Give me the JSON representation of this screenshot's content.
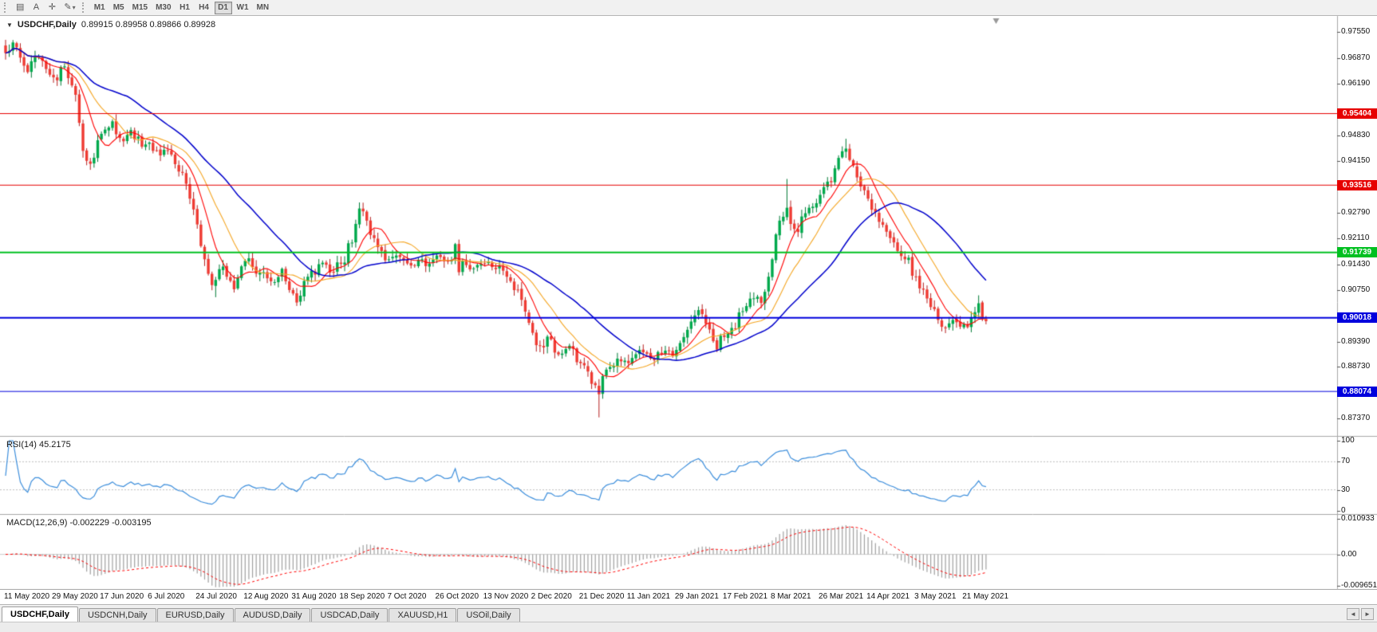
{
  "toolbar": {
    "icons": {
      "charts": "▤",
      "text_label": "A",
      "crosshair": "✛",
      "draw": "✎",
      "dropdown": "▾"
    },
    "timeframes": [
      "M1",
      "M5",
      "M15",
      "M30",
      "H1",
      "H4",
      "D1",
      "W1",
      "MN"
    ],
    "active_timeframe": "D1"
  },
  "chart": {
    "title_symbol": "USDCHF,Daily",
    "title_ohlc": "0.89915 0.89958 0.89866 0.89928",
    "expand_icon": "▼"
  },
  "rsi_panel": {
    "label": "RSI(14) 45.2175"
  },
  "macd_panel": {
    "label": "MACD(12,26,9) -0.002229 -0.003195"
  },
  "window_tabs": [
    "USDCHF,Daily",
    "USDCNH,Daily",
    "EURUSD,Daily",
    "AUDUSD,Daily",
    "USDCAD,Daily",
    "XAUUSD,H1",
    "USOil,Daily"
  ],
  "active_tab_index": 0,
  "tab_arrows": {
    "left": "◄",
    "right": "►"
  },
  "chart_data": {
    "type": "candlestick",
    "symbol": "USDCHF",
    "period": "Daily",
    "open": "0.89915",
    "high": "0.89958",
    "low": "0.89866",
    "close": "0.89928",
    "ylim": [
      0.869,
      0.9798
    ],
    "y_ticks": [
      0.9755,
      0.9687,
      0.9619,
      0.9483,
      0.9415,
      0.9279,
      0.9211,
      0.9143,
      0.9075,
      0.8939,
      0.8873,
      0.8737
    ],
    "y_tick_labels": [
      "0.97550",
      "0.96870",
      "0.96190",
      "0.94830",
      "0.94150",
      "0.92790",
      "0.92110",
      "0.91430",
      "0.90750",
      "0.89390",
      "0.88730",
      "0.87370"
    ],
    "hlines": [
      {
        "price": 0.95404,
        "label": "0.95404",
        "color": "#e60000",
        "width": 1
      },
      {
        "price": 0.93516,
        "label": "0.93516",
        "color": "#e60000",
        "width": 1
      },
      {
        "price": 0.91739,
        "label": "0.91739",
        "color": "#00c020",
        "width": 2
      },
      {
        "price": 0.90018,
        "label": "0.90018",
        "color": "#0000dd",
        "width": 2
      },
      {
        "price": 0.88074,
        "label": "0.88074",
        "color": "#0000dd",
        "width": 1
      }
    ],
    "x_labels": [
      "11 May 2020",
      "29 May 2020",
      "17 Jun 2020",
      "6 Jul 2020",
      "24 Jul 2020",
      "12 Aug 2020",
      "31 Aug 2020",
      "18 Sep 2020",
      "7 Oct 2020",
      "26 Oct 2020",
      "13 Nov 2020",
      "2 Dec 2020",
      "21 Dec 2020",
      "11 Jan 2021",
      "29 Jan 2021",
      "17 Feb 2021",
      "8 Mar 2021",
      "26 Mar 2021",
      "14 Apr 2021",
      "3 May 2021",
      "21 May 2021"
    ],
    "bars_per_label": 13,
    "total_bars": 267,
    "candle_colors": {
      "up": "#00a94c",
      "down": "#ef3b33",
      "up_border": "#007a36",
      "down_border": "#b51f1f"
    },
    "moving_averages": [
      {
        "period": 8,
        "color": "#ff0000"
      },
      {
        "period": 16,
        "color": "#f5a623"
      },
      {
        "period": 34,
        "color": "#0000cc"
      }
    ],
    "price_anchors": [
      [
        0,
        0.97
      ],
      [
        2,
        0.9728
      ],
      [
        4,
        0.9688
      ],
      [
        6,
        0.965
      ],
      [
        8,
        0.9692
      ],
      [
        11,
        0.9658
      ],
      [
        13,
        0.9636
      ],
      [
        16,
        0.9665
      ],
      [
        19,
        0.959
      ],
      [
        21,
        0.9442
      ],
      [
        23,
        0.9408
      ],
      [
        25,
        0.947
      ],
      [
        26,
        0.9487
      ],
      [
        29,
        0.952
      ],
      [
        31,
        0.9476
      ],
      [
        34,
        0.9497
      ],
      [
        37,
        0.9453
      ],
      [
        39,
        0.9464
      ],
      [
        42,
        0.943
      ],
      [
        44,
        0.9442
      ],
      [
        46,
        0.9407
      ],
      [
        48,
        0.9384
      ],
      [
        50,
        0.9316
      ],
      [
        52,
        0.9248
      ],
      [
        54,
        0.9156
      ],
      [
        56,
        0.9088
      ],
      [
        58,
        0.913
      ],
      [
        60,
        0.911
      ],
      [
        62,
        0.9077
      ],
      [
        65,
        0.9152
      ],
      [
        69,
        0.9121
      ],
      [
        72,
        0.9098
      ],
      [
        75,
        0.9131
      ],
      [
        77,
        0.9075
      ],
      [
        79,
        0.9042
      ],
      [
        82,
        0.911
      ],
      [
        85,
        0.9143
      ],
      [
        88,
        0.9121
      ],
      [
        91,
        0.9144
      ],
      [
        94,
        0.92
      ],
      [
        96,
        0.929
      ],
      [
        98,
        0.9258
      ],
      [
        100,
        0.9212
      ],
      [
        102,
        0.9178
      ],
      [
        104,
        0.9156
      ],
      [
        106,
        0.9166
      ],
      [
        109,
        0.9145
      ],
      [
        112,
        0.9155
      ],
      [
        114,
        0.9138
      ],
      [
        117,
        0.9166
      ],
      [
        120,
        0.915
      ],
      [
        122,
        0.9196
      ],
      [
        123,
        0.9122
      ],
      [
        124,
        0.9152
      ],
      [
        127,
        0.9132
      ],
      [
        130,
        0.9144
      ],
      [
        133,
        0.913
      ],
      [
        136,
        0.911
      ],
      [
        139,
        0.9076
      ],
      [
        141,
        0.9018
      ],
      [
        143,
        0.8962
      ],
      [
        145,
        0.8928
      ],
      [
        147,
        0.8952
      ],
      [
        150,
        0.8905
      ],
      [
        153,
        0.8928
      ],
      [
        156,
        0.8882
      ],
      [
        158,
        0.886
      ],
      [
        160,
        0.8824
      ],
      [
        161,
        0.88
      ],
      [
        162,
        0.8848
      ],
      [
        164,
        0.8872
      ],
      [
        166,
        0.8894
      ],
      [
        169,
        0.8882
      ],
      [
        172,
        0.8917
      ],
      [
        175,
        0.8894
      ],
      [
        178,
        0.8906
      ],
      [
        182,
        0.8917
      ],
      [
        184,
        0.8951
      ],
      [
        187,
        0.9008
      ],
      [
        188,
        0.9022
      ],
      [
        190,
        0.8986
      ],
      [
        192,
        0.894
      ],
      [
        193,
        0.8918
      ],
      [
        195,
        0.8951
      ],
      [
        197,
        0.8975
      ],
      [
        200,
        0.9019
      ],
      [
        203,
        0.9053
      ],
      [
        205,
        0.9041
      ],
      [
        207,
        0.911
      ],
      [
        208,
        0.9156
      ],
      [
        210,
        0.9258
      ],
      [
        212,
        0.9292
      ],
      [
        214,
        0.9236
      ],
      [
        215,
        0.9228
      ],
      [
        216,
        0.9269
      ],
      [
        218,
        0.9292
      ],
      [
        220,
        0.9304
      ],
      [
        221,
        0.9326
      ],
      [
        223,
        0.9361
      ],
      [
        225,
        0.9396
      ],
      [
        227,
        0.9441
      ],
      [
        228,
        0.9448
      ],
      [
        229,
        0.9418
      ],
      [
        231,
        0.9372
      ],
      [
        233,
        0.9338
      ],
      [
        234,
        0.9316
      ],
      [
        236,
        0.9281
      ],
      [
        238,
        0.9247
      ],
      [
        240,
        0.9212
      ],
      [
        242,
        0.9178
      ],
      [
        244,
        0.9156
      ],
      [
        247,
        0.911
      ],
      [
        249,
        0.9076
      ],
      [
        251,
        0.903
      ],
      [
        253,
        0.8996
      ],
      [
        255,
        0.8974
      ],
      [
        257,
        0.8996
      ],
      [
        260,
        0.8985
      ],
      [
        262,
        0.9002
      ],
      [
        264,
        0.904
      ],
      [
        265,
        0.9
      ],
      [
        266,
        0.89928
      ]
    ],
    "wick_overrides": [
      {
        "bar": 23,
        "low": 0.9392
      },
      {
        "bar": 57,
        "low": 0.9056
      },
      {
        "bar": 96,
        "high": 0.9306
      },
      {
        "bar": 161,
        "low": 0.8739
      },
      {
        "bar": 212,
        "high": 0.9368
      },
      {
        "bar": 228,
        "high": 0.9474
      },
      {
        "bar": 264,
        "high": 0.9061
      }
    ],
    "rsi": {
      "period": 14,
      "color": "#3c8edc",
      "levels": [
        70,
        30
      ],
      "axis_values": [
        100,
        70,
        30,
        0
      ],
      "axis_labels": [
        "100",
        "70",
        "30",
        "0"
      ],
      "range": [
        0,
        100
      ]
    },
    "macd": {
      "fast": 12,
      "slow": 26,
      "signal": 9,
      "histogram_color": "#a0a0a0",
      "signal_color": "#ff0000",
      "axis_values": [
        0.010933,
        0,
        -0.009651
      ],
      "axis_labels": [
        "0.010933",
        "0.00",
        "-0.009651"
      ],
      "range_max": 0.010933,
      "range_min": -0.009651
    }
  }
}
